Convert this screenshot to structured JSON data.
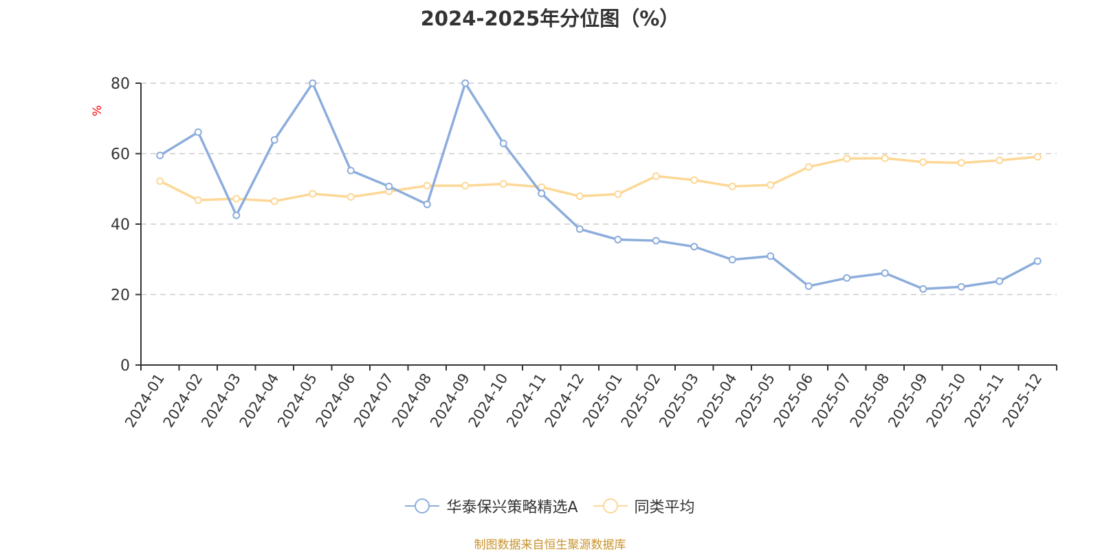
{
  "title": "2024-2025年分位图（%）",
  "footer": "制图数据来自恒生聚源数据库",
  "legend": [
    {
      "label": "华泰保兴策略精选A",
      "color": "#8caddc"
    },
    {
      "label": "同类平均",
      "color": "#fdd795"
    }
  ],
  "colors": {
    "axis": "#333333",
    "grid": "#cccccc",
    "tick_text": "#333333",
    "unit_label": "#ff0000",
    "footer": "#c8932e"
  },
  "chart_data": {
    "type": "line",
    "title": "2024-2025年分位图（%）",
    "xlabel": "",
    "ylabel": "%",
    "ylim": [
      0,
      80
    ],
    "yticks": [
      0,
      20,
      40,
      60,
      80
    ],
    "grid": true,
    "legend_position": "bottom",
    "categories": [
      "2024-01",
      "2024-02",
      "2024-03",
      "2024-04",
      "2024-05",
      "2024-06",
      "2024-07",
      "2024-08",
      "2024-09",
      "2024-10",
      "2024-11",
      "2024-12",
      "2025-01",
      "2025-02",
      "2025-03",
      "2025-04",
      "2025-05",
      "2025-06",
      "2025-07",
      "2025-08",
      "2025-09",
      "2025-10",
      "2025-11",
      "2025-12"
    ],
    "series": [
      {
        "name": "华泰保兴策略精选A",
        "color": "#8caddc",
        "values": [
          59.5,
          66.1,
          42.5,
          63.9,
          80.0,
          55.2,
          50.7,
          45.6,
          80.0,
          62.9,
          48.7,
          38.6,
          35.6,
          35.3,
          33.6,
          29.9,
          30.9,
          22.4,
          24.7,
          26.1,
          21.6,
          22.2,
          23.8,
          29.5
        ]
      },
      {
        "name": "同类平均",
        "color": "#fdd795",
        "values": [
          52.2,
          46.8,
          47.2,
          46.5,
          48.6,
          47.7,
          49.3,
          50.9,
          50.9,
          51.4,
          50.5,
          47.9,
          48.5,
          53.6,
          52.5,
          50.7,
          51.1,
          56.2,
          58.6,
          58.7,
          57.6,
          57.4,
          58.1,
          59.1
        ]
      }
    ]
  }
}
